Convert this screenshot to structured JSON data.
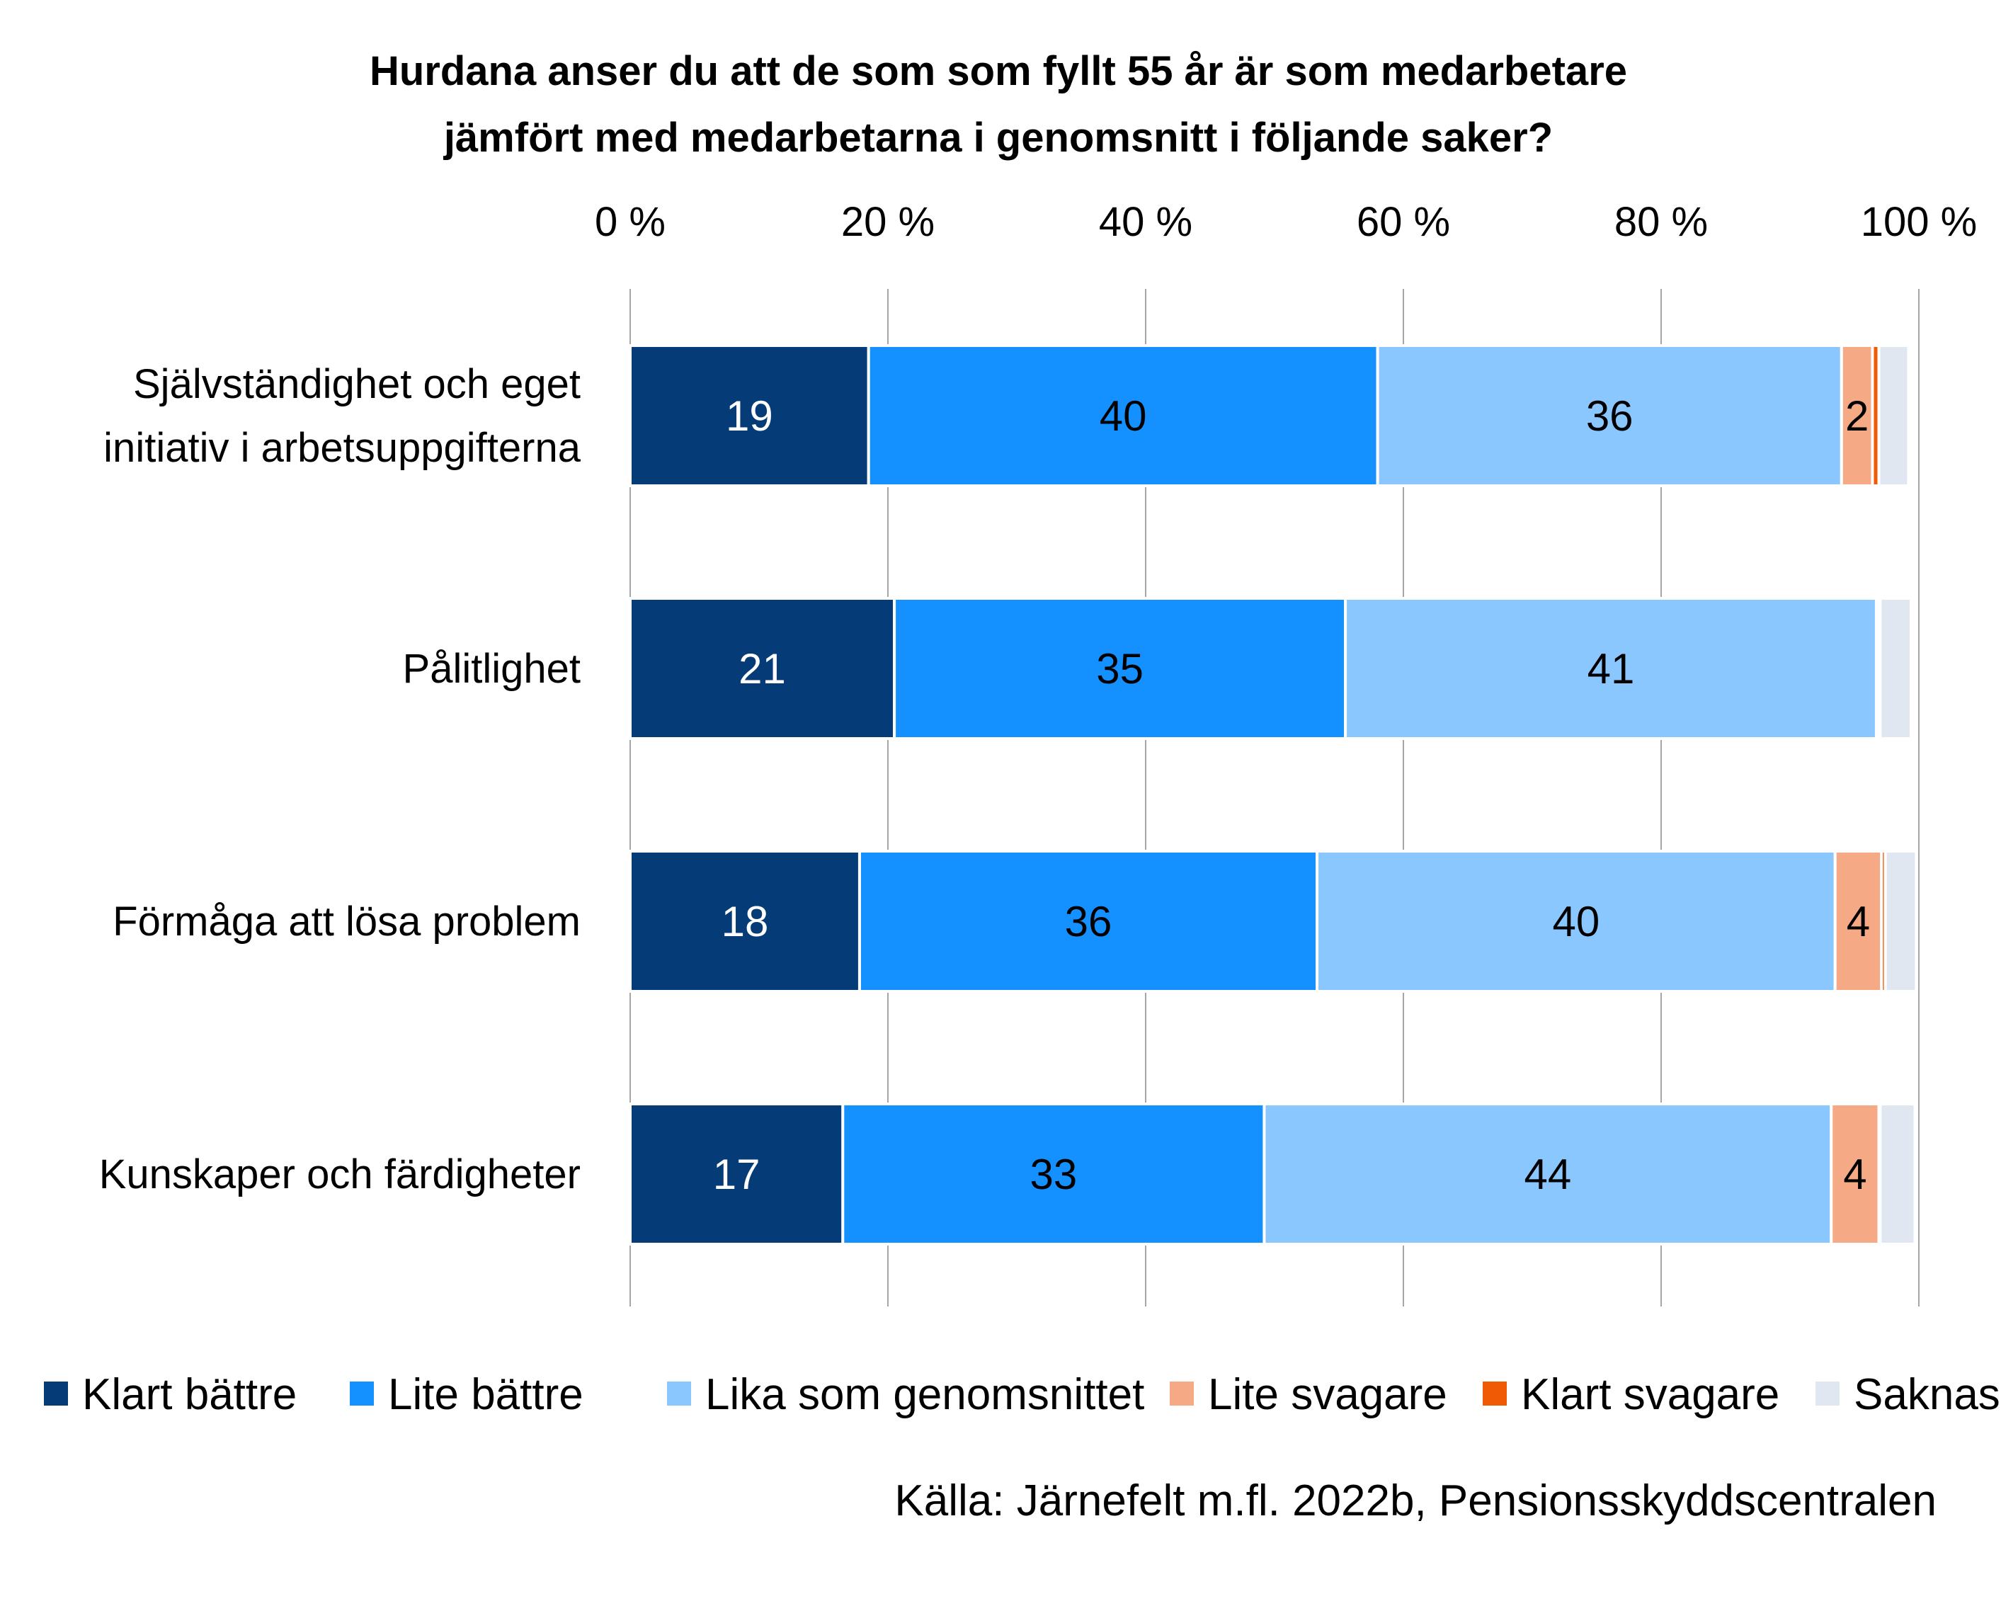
{
  "chart_data": {
    "type": "bar",
    "orientation": "horizontal",
    "stacked": true,
    "title": "Hurdana anser du att de som som fyllt 55 år är som medarbetare jämfört med medarbetarna i genomsnitt i följande saker?",
    "title_lines": [
      "Hurdana anser du att de som som fyllt 55 år är som medarbetare",
      "jämfört med medarbetarna i genomsnitt i följande saker?"
    ],
    "categories": [
      [
        "Självständighet och eget",
        "initiativ i arbetsuppgifterna"
      ],
      [
        "Pålitlighet"
      ],
      [
        "Förmåga att lösa problem"
      ],
      [
        "Kunskaper och färdigheter"
      ]
    ],
    "x_ticks": [
      "0 %",
      "20 %",
      "40 %",
      "60 %",
      "80 %",
      "100 %"
    ],
    "xlim": [
      0,
      100
    ],
    "grid": "vertical",
    "legend_position": "bottom",
    "series": [
      {
        "name": "Klart bättre",
        "color": "#053C78",
        "label_color": "#FFFFFF",
        "values": [
          18.5,
          20.5,
          17.8,
          16.5
        ],
        "labels": [
          "19",
          "21",
          "18",
          "17"
        ]
      },
      {
        "name": "Lite bättre",
        "color": "#1490FF",
        "label_color": "#000000",
        "values": [
          39.5,
          35.0,
          35.5,
          32.7
        ],
        "labels": [
          "40",
          "35",
          "36",
          "33"
        ]
      },
      {
        "name": "Lika som genomsnittet",
        "color": "#8BC7FF",
        "label_color": "#000000",
        "values": [
          36.0,
          41.2,
          40.2,
          44.0
        ],
        "labels": [
          "36",
          "41",
          "40",
          "44"
        ]
      },
      {
        "name": "Lite svagare",
        "color": "#F5AA85",
        "label_color": "#000000",
        "values": [
          2.4,
          0.2,
          3.6,
          3.7
        ],
        "labels": [
          "2",
          "",
          "4",
          "4"
        ]
      },
      {
        "name": "Klart svagare",
        "color": "#F05A05",
        "label_color": "#000000",
        "values": [
          0.5,
          0.1,
          0.3,
          0.1
        ],
        "labels": [
          "",
          "",
          "",
          ""
        ]
      },
      {
        "name": "Saknas",
        "color": "#E1E7F0",
        "label_color": "#000000",
        "values": [
          2.3,
          2.4,
          2.4,
          2.7
        ],
        "labels": [
          "",
          "",
          "",
          ""
        ]
      }
    ],
    "source": "Källa: Järnefelt m.fl. 2022b, Pensionsskyddscentralen"
  }
}
